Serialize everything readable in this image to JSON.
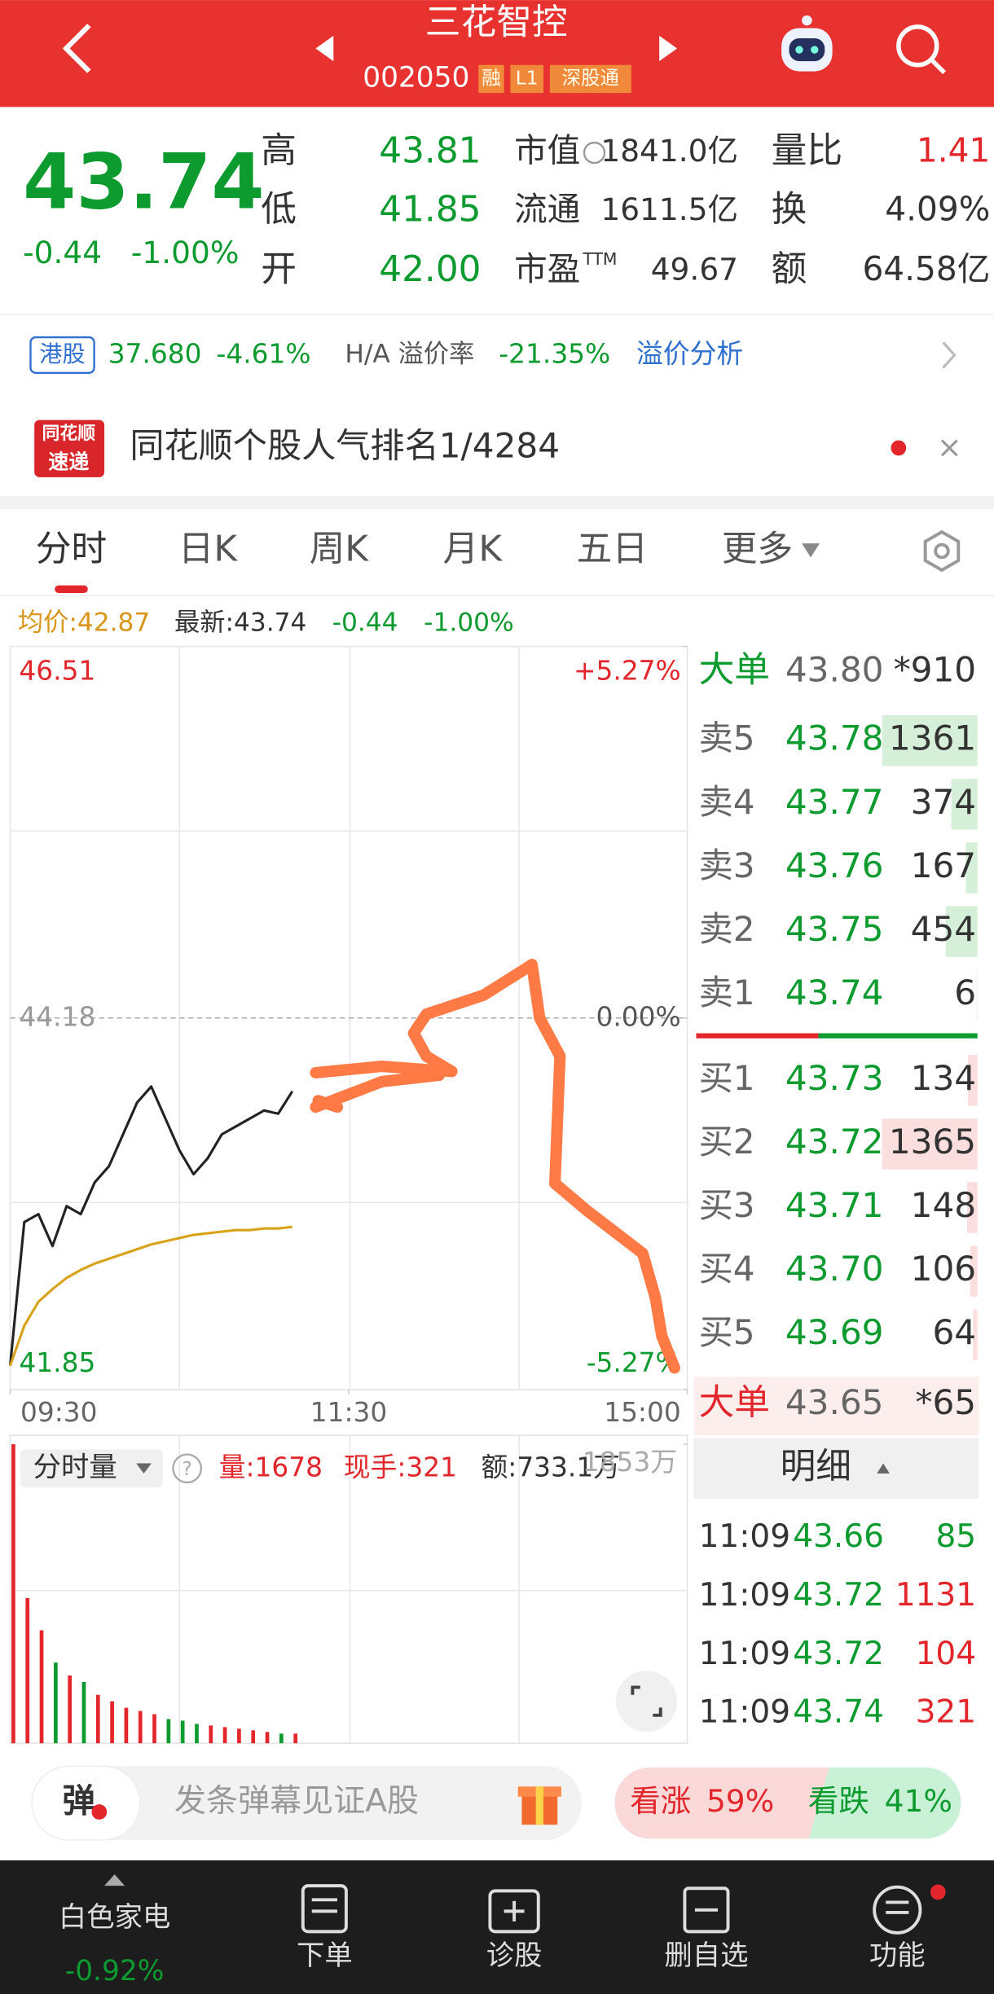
{
  "header": {
    "title": "三花智控",
    "code": "002050",
    "tags": [
      "融",
      "L1",
      "深股通"
    ]
  },
  "quote": {
    "price": "43.74",
    "change": "-0.44",
    "change_pct": "-1.00%",
    "stats": [
      {
        "label": "高",
        "value": "43.81"
      },
      {
        "label": "低",
        "value": "41.85"
      },
      {
        "label": "开",
        "value": "42.00"
      },
      {
        "label": "市值",
        "value": "1841.0亿"
      },
      {
        "label": "流通",
        "value": "1611.5亿"
      },
      {
        "label": "市盈",
        "sup": "TTM",
        "value": "49.67"
      },
      {
        "label": "量比",
        "value": "1.41"
      },
      {
        "label": "换",
        "value": "4.09%"
      },
      {
        "label": "额",
        "value": "64.58亿"
      }
    ]
  },
  "hk": {
    "label": "港股",
    "price": "37.680",
    "pct": "-4.61%",
    "premium_label": "H/A 溢价率",
    "premium": "-21.35%",
    "link": "溢价分析"
  },
  "banner": {
    "brand": [
      "同花顺",
      "速递"
    ],
    "text": "同花顺个股人气排名1/4284"
  },
  "tabs": [
    "分时",
    "日K",
    "周K",
    "月K",
    "五日",
    "更多"
  ],
  "chart_info": {
    "avg": "均价:42.87",
    "latest": "最新:43.74",
    "change": "-0.44",
    "pct": "-1.00%"
  },
  "chart_data": {
    "type": "line",
    "x": [
      0,
      5,
      10,
      15,
      20,
      25,
      30,
      35,
      40,
      45,
      50,
      55,
      60,
      65,
      70,
      75,
      80,
      85,
      90,
      95,
      100
    ],
    "xlim": [
      0,
      240
    ],
    "xticks": [
      {
        "value": 0,
        "label": "09:30"
      },
      {
        "value": 120,
        "label": "11:30"
      },
      {
        "value": 240,
        "label": "15:00"
      }
    ],
    "ylim": [
      41.85,
      46.51
    ],
    "yticks": [
      41.85,
      44.18,
      46.51
    ],
    "y2lim": [
      -5.27,
      5.27
    ],
    "y2ticks": [
      {
        "value": -5.27,
        "label": "-5.27%"
      },
      {
        "value": 0,
        "label": "0.00%"
      },
      {
        "value": 5.27,
        "label": "+5.27%"
      }
    ],
    "series": [
      {
        "name": "价格",
        "color": "#222222",
        "values": [
          42.0,
          42.9,
          42.95,
          42.75,
          43.0,
          42.95,
          43.15,
          43.25,
          43.45,
          43.65,
          43.75,
          43.55,
          43.35,
          43.2,
          43.3,
          43.45,
          43.5,
          43.55,
          43.6,
          43.58,
          43.72
        ]
      },
      {
        "name": "均价",
        "color": "#d9a21b",
        "values": [
          42.0,
          42.25,
          42.4,
          42.48,
          42.55,
          42.6,
          42.64,
          42.67,
          42.7,
          42.73,
          42.76,
          42.78,
          42.8,
          42.82,
          42.83,
          42.84,
          42.85,
          42.85,
          42.86,
          42.86,
          42.87
        ]
      }
    ],
    "volume": {
      "title": "分时量",
      "info": [
        "量:1678",
        "现手:321",
        "额:733.1万"
      ],
      "ylim": [
        0,
        1853
      ],
      "yticks": [
        {
          "value": 1853,
          "label": "1853万"
        }
      ],
      "values": [
        1853,
        900,
        700,
        500,
        420,
        380,
        300,
        260,
        220,
        200,
        180,
        150,
        140,
        120,
        110,
        100,
        90,
        80,
        70,
        60,
        60
      ]
    }
  },
  "order_book": {
    "big_sell": {
      "label": "大单",
      "price": "43.80",
      "volume": "*910"
    },
    "asks": [
      {
        "label": "卖5",
        "price": "43.78",
        "volume": 1361
      },
      {
        "label": "卖4",
        "price": "43.77",
        "volume": 374
      },
      {
        "label": "卖3",
        "price": "43.76",
        "volume": 167
      },
      {
        "label": "卖2",
        "price": "43.75",
        "volume": 454
      },
      {
        "label": "卖1",
        "price": "43.74",
        "volume": 6
      }
    ],
    "bids": [
      {
        "label": "买1",
        "price": "43.73",
        "volume": 134
      },
      {
        "label": "买2",
        "price": "43.72",
        "volume": 1365
      },
      {
        "label": "买3",
        "price": "43.71",
        "volume": 148
      },
      {
        "label": "买4",
        "price": "43.70",
        "volume": 106
      },
      {
        "label": "买5",
        "price": "43.69",
        "volume": 64
      }
    ],
    "big_buy": {
      "label": "大单",
      "price": "43.65",
      "volume": "*65"
    },
    "detail_title": "明细",
    "trades": [
      {
        "time": "11:09",
        "price": "43.66",
        "volume": 85
      },
      {
        "time": "11:09",
        "price": "43.72",
        "volume": 1131
      },
      {
        "time": "11:09",
        "price": "43.72",
        "volume": 104
      },
      {
        "time": "11:09",
        "price": "43.74",
        "volume": 321
      }
    ]
  },
  "danmaku": {
    "icon": "弹",
    "placeholder": "发条弹幕见证A股"
  },
  "sentiment": {
    "up": {
      "label": "看涨",
      "value": 59,
      "value_label": "59%"
    },
    "down": {
      "label": "看跌",
      "value": 41,
      "value_label": "41%"
    }
  },
  "nav": {
    "sector": "白色家电",
    "sector_pct": "-0.92%",
    "items": [
      "下单",
      "诊股",
      "删自选",
      "功能"
    ]
  }
}
